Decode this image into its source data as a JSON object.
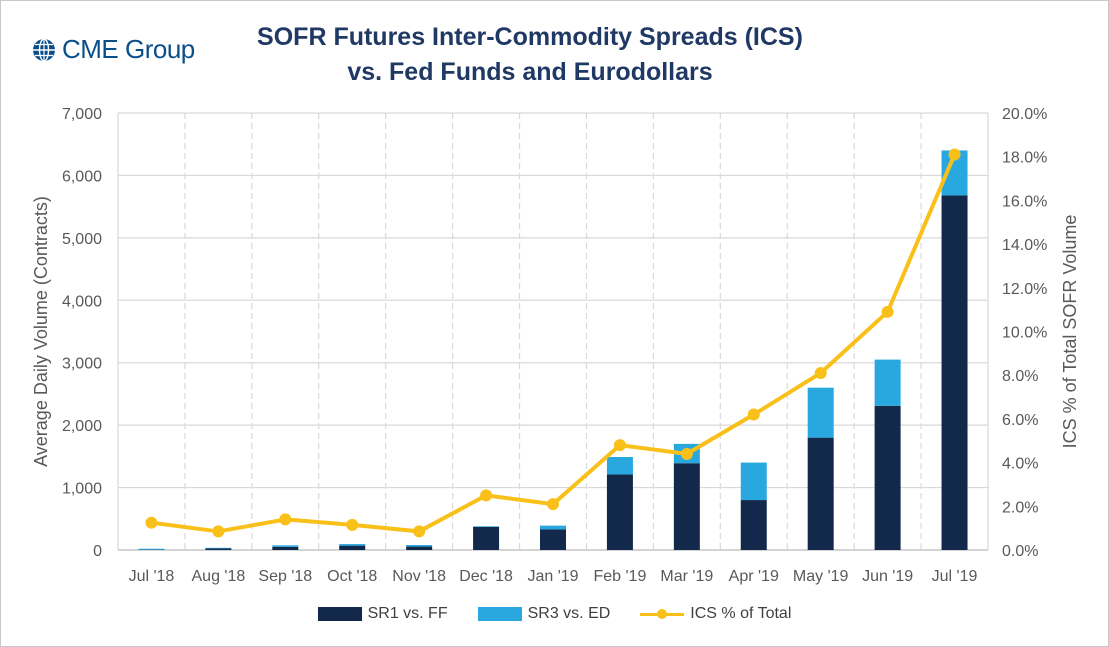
{
  "logo": {
    "text": "CME Group",
    "icon": "globe-icon",
    "color": "#0b4f8a"
  },
  "title": {
    "line1": "SOFR Futures Inter-Commodity Spreads (ICS)",
    "line2": "vs. Fed Funds and Eurodollars"
  },
  "legend": {
    "sr1": "SR1 vs. FF",
    "sr3": "SR3 vs. ED",
    "ics": "ICS % of Total"
  },
  "chart_data": {
    "type": "bar",
    "stacked": true,
    "categories": [
      "Jul '18",
      "Aug '18",
      "Sep '18",
      "Oct '18",
      "Nov '18",
      "Dec '18",
      "Jan '19",
      "Feb '19",
      "Mar '19",
      "Apr '19",
      "May '19",
      "Jun '19",
      "Jul '19"
    ],
    "series": [
      {
        "name": "SR1 vs. FF",
        "kind": "bar",
        "color": "#13294b",
        "values": [
          5,
          25,
          50,
          70,
          55,
          370,
          330,
          1210,
          1390,
          800,
          1800,
          2310,
          5680
        ]
      },
      {
        "name": "SR3 vs. ED",
        "kind": "bar",
        "color": "#29a8e0",
        "values": [
          15,
          10,
          25,
          25,
          25,
          10,
          60,
          280,
          310,
          600,
          800,
          740,
          720
        ]
      },
      {
        "name": "ICS % of Total",
        "kind": "line",
        "axis": "right",
        "color": "#f9c019",
        "values": [
          1.25,
          0.85,
          1.4,
          1.15,
          0.85,
          2.5,
          2.1,
          4.8,
          4.4,
          6.2,
          8.1,
          10.9,
          18.1
        ]
      }
    ],
    "ylabel": "Average Daily Volume (Contracts)",
    "y2label": "ICS % of Total SOFR Volume",
    "ylim": [
      0,
      7000
    ],
    "yticks": [
      0,
      1000,
      2000,
      3000,
      4000,
      5000,
      6000,
      7000
    ],
    "ytick_labels": [
      "0",
      "1,000",
      "2,000",
      "3,000",
      "4,000",
      "5,000",
      "6,000",
      "7,000"
    ],
    "y2lim": [
      0,
      20
    ],
    "y2ticks": [
      0,
      2,
      4,
      6,
      8,
      10,
      12,
      14,
      16,
      18,
      20
    ],
    "y2tick_labels": [
      "0.0%",
      "2.0%",
      "4.0%",
      "6.0%",
      "8.0%",
      "10.0%",
      "12.0%",
      "14.0%",
      "16.0%",
      "18.0%",
      "20.0%"
    ],
    "grid": true,
    "legend_position": "bottom"
  }
}
